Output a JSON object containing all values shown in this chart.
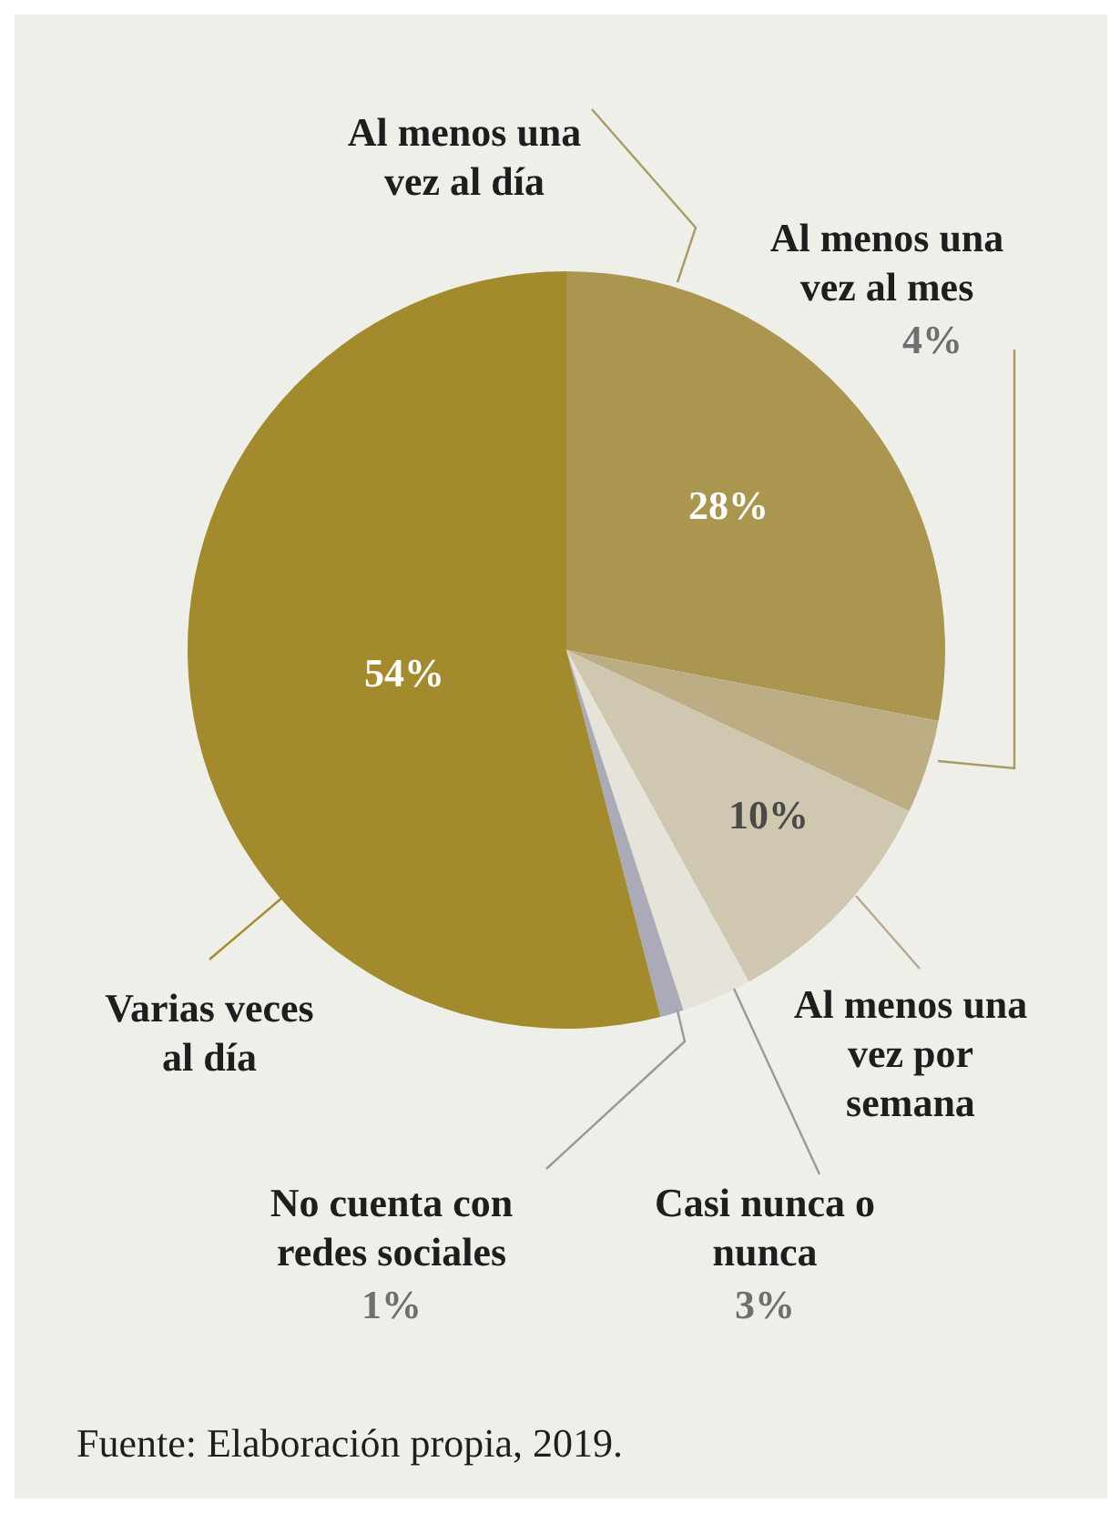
{
  "chart_data": {
    "type": "pie",
    "categories": [
      "Al menos una vez al día",
      "Al menos una vez al mes",
      "Al menos una vez por semana",
      "Casi nunca o nunca",
      "No cuenta con redes sociales",
      "Varias veces al día"
    ],
    "values": [
      28,
      4,
      10,
      3,
      1,
      54
    ],
    "value_labels": [
      "28%",
      "4%",
      "10%",
      "3%",
      "1%",
      "54%"
    ],
    "colors": [
      "#ab9650",
      "#bcad84",
      "#d0c7b0",
      "#e6e3da",
      "#aaaab8",
      "#a38a2c"
    ],
    "annotations": [
      "Fuente: Elaboración propia, 2019."
    ]
  }
}
